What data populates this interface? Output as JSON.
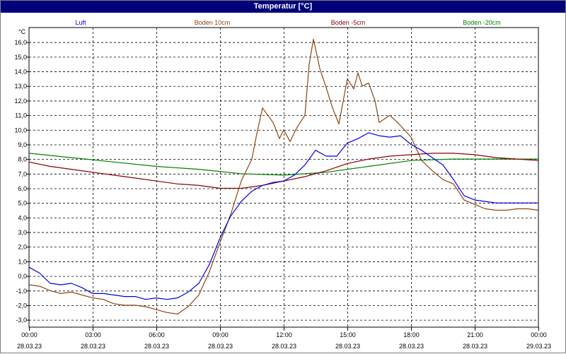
{
  "window": {
    "title": "Temperatur [°C]"
  },
  "chart_data": {
    "type": "line",
    "title": "Temperatur [°C]",
    "ylabel": "°C",
    "ylim": [
      -3.5,
      17.0
    ],
    "y_ticks": [
      16.0,
      15.0,
      14.0,
      13.0,
      12.0,
      11.0,
      10.0,
      9.0,
      8.0,
      7.0,
      6.0,
      5.0,
      4.0,
      3.0,
      2.0,
      1.0,
      0.0,
      -1.0,
      -2.0,
      -3.0
    ],
    "x_range_hours": [
      0,
      24
    ],
    "x_ticks": [
      {
        "h": 0,
        "time": "00:00",
        "date": "28.03.23"
      },
      {
        "h": 3,
        "time": "03:00",
        "date": "28.03.23"
      },
      {
        "h": 6,
        "time": "06:00",
        "date": "28.03.23"
      },
      {
        "h": 9,
        "time": "09:00",
        "date": "28.03.23"
      },
      {
        "h": 12,
        "time": "12:00",
        "date": "28.03.23"
      },
      {
        "h": 15,
        "time": "15:00",
        "date": "28.03.23"
      },
      {
        "h": 18,
        "time": "18:00",
        "date": "28.03.23"
      },
      {
        "h": 21,
        "time": "21:00",
        "date": "28.03.23"
      },
      {
        "h": 24,
        "time": "00:00",
        "date": "29.03.23"
      }
    ],
    "grid": true,
    "legend_position": "top",
    "series": [
      {
        "name": "Luft",
        "color": "#0000e0",
        "points": [
          [
            0,
            0.6
          ],
          [
            0.5,
            0.2
          ],
          [
            1,
            -0.5
          ],
          [
            1.5,
            -0.6
          ],
          [
            2,
            -0.5
          ],
          [
            2.5,
            -0.8
          ],
          [
            3,
            -1.2
          ],
          [
            3.5,
            -1.2
          ],
          [
            4,
            -1.3
          ],
          [
            4.5,
            -1.4
          ],
          [
            5,
            -1.4
          ],
          [
            5.5,
            -1.6
          ],
          [
            6,
            -1.5
          ],
          [
            6.5,
            -1.6
          ],
          [
            7,
            -1.5
          ],
          [
            7.5,
            -1.1
          ],
          [
            8,
            -0.5
          ],
          [
            8.5,
            0.8
          ],
          [
            9,
            2.6
          ],
          [
            9.5,
            4.1
          ],
          [
            10,
            5.1
          ],
          [
            10.5,
            5.8
          ],
          [
            11,
            6.2
          ],
          [
            11.5,
            6.4
          ],
          [
            12,
            6.5
          ],
          [
            12.5,
            6.9
          ],
          [
            13,
            7.6
          ],
          [
            13.5,
            8.6
          ],
          [
            14,
            8.2
          ],
          [
            14.5,
            8.2
          ],
          [
            15,
            9.1
          ],
          [
            15.5,
            9.4
          ],
          [
            16,
            9.8
          ],
          [
            16.5,
            9.6
          ],
          [
            17,
            9.5
          ],
          [
            17.5,
            9.6
          ],
          [
            18,
            9.0
          ],
          [
            18.5,
            8.6
          ],
          [
            19,
            8.1
          ],
          [
            19.5,
            7.6
          ],
          [
            20,
            6.6
          ],
          [
            20.5,
            5.5
          ],
          [
            21,
            5.2
          ],
          [
            21.5,
            5.1
          ],
          [
            22,
            5.0
          ],
          [
            22.5,
            5.0
          ],
          [
            23,
            5.0
          ],
          [
            23.5,
            5.0
          ],
          [
            24,
            5.0
          ]
        ]
      },
      {
        "name": "Boden 10cm",
        "color": "#8b4513",
        "points": [
          [
            0,
            -0.6
          ],
          [
            0.5,
            -0.7
          ],
          [
            1,
            -1.0
          ],
          [
            1.5,
            -1.2
          ],
          [
            2,
            -1.1
          ],
          [
            2.5,
            -1.3
          ],
          [
            3,
            -1.5
          ],
          [
            3.5,
            -1.6
          ],
          [
            4,
            -1.9
          ],
          [
            4.5,
            -2.0
          ],
          [
            5,
            -2.0
          ],
          [
            5.5,
            -2.1
          ],
          [
            6,
            -2.3
          ],
          [
            6.5,
            -2.5
          ],
          [
            7,
            -2.6
          ],
          [
            7.5,
            -2.1
          ],
          [
            8,
            -1.3
          ],
          [
            8.5,
            0.3
          ],
          [
            9,
            2.3
          ],
          [
            9.5,
            4.2
          ],
          [
            10,
            6.5
          ],
          [
            10.5,
            8.0
          ],
          [
            10.7,
            9.5
          ],
          [
            11,
            11.5
          ],
          [
            11.5,
            10.5
          ],
          [
            11.8,
            9.4
          ],
          [
            12,
            10.0
          ],
          [
            12.3,
            9.2
          ],
          [
            12.6,
            10.1
          ],
          [
            13,
            11.0
          ],
          [
            13.2,
            14.5
          ],
          [
            13.4,
            16.2
          ],
          [
            13.7,
            14.2
          ],
          [
            14,
            12.9
          ],
          [
            14.3,
            11.5
          ],
          [
            14.6,
            10.4
          ],
          [
            15,
            13.5
          ],
          [
            15.3,
            12.8
          ],
          [
            15.5,
            13.9
          ],
          [
            15.7,
            13.0
          ],
          [
            16,
            13.2
          ],
          [
            16.3,
            12.0
          ],
          [
            16.5,
            10.5
          ],
          [
            17,
            11.0
          ],
          [
            17.5,
            10.3
          ],
          [
            18,
            9.5
          ],
          [
            18.5,
            7.9
          ],
          [
            19,
            7.2
          ],
          [
            19.5,
            6.6
          ],
          [
            20,
            6.3
          ],
          [
            20.5,
            5.2
          ],
          [
            21,
            4.9
          ],
          [
            21.5,
            4.6
          ],
          [
            22,
            4.5
          ],
          [
            22.5,
            4.5
          ],
          [
            23,
            4.6
          ],
          [
            23.5,
            4.6
          ],
          [
            24,
            4.5
          ]
        ]
      },
      {
        "name": "Boden -5cm",
        "color": "#8b0000",
        "points": [
          [
            0,
            7.8
          ],
          [
            1,
            7.5
          ],
          [
            2,
            7.3
          ],
          [
            3,
            7.1
          ],
          [
            4,
            6.9
          ],
          [
            5,
            6.7
          ],
          [
            6,
            6.5
          ],
          [
            7,
            6.3
          ],
          [
            8,
            6.2
          ],
          [
            9,
            6.0
          ],
          [
            10,
            6.0
          ],
          [
            11,
            6.2
          ],
          [
            12,
            6.5
          ],
          [
            13,
            6.8
          ],
          [
            14,
            7.2
          ],
          [
            15,
            7.7
          ],
          [
            16,
            8.0
          ],
          [
            17,
            8.2
          ],
          [
            18,
            8.3
          ],
          [
            19,
            8.4
          ],
          [
            20,
            8.4
          ],
          [
            21,
            8.3
          ],
          [
            22,
            8.1
          ],
          [
            23,
            8.0
          ],
          [
            24,
            7.9
          ]
        ]
      },
      {
        "name": "Boden -20cm",
        "color": "#008000",
        "points": [
          [
            0,
            8.4
          ],
          [
            2,
            8.1
          ],
          [
            4,
            7.8
          ],
          [
            6,
            7.5
          ],
          [
            8,
            7.3
          ],
          [
            10,
            7.0
          ],
          [
            12,
            6.9
          ],
          [
            14,
            7.1
          ],
          [
            16,
            7.5
          ],
          [
            18,
            7.9
          ],
          [
            20,
            8.0
          ],
          [
            22,
            8.0
          ],
          [
            24,
            8.0
          ]
        ]
      }
    ]
  }
}
